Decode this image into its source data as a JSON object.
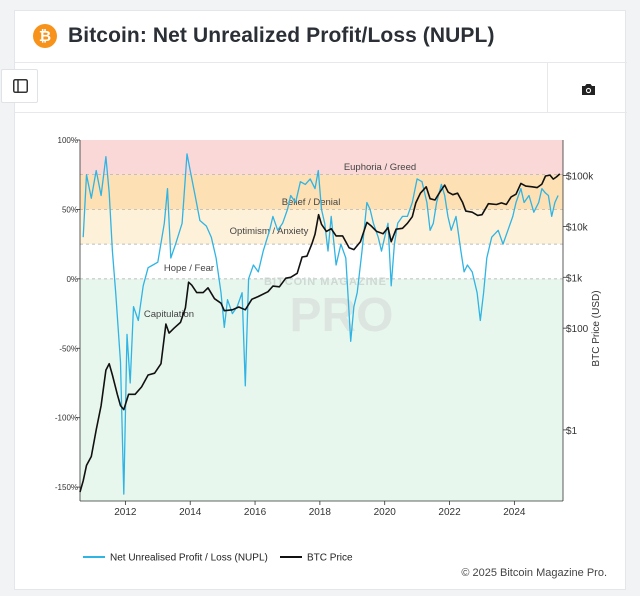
{
  "header": {
    "title": "Bitcoin: Net Unrealized Profit/Loss (NUPL)",
    "logo": "bitcoin-logo",
    "logo_color": "#f7931a"
  },
  "toolbar": {
    "sidebar_toggle_icon": "sidebar-toggle-icon",
    "camera_icon": "camera-icon"
  },
  "footer": {
    "copyright": "© 2025 Bitcoin Magazine Pro."
  },
  "watermark": {
    "line1": "BITCOIN MAGAZINE",
    "line2": "PRO"
  },
  "chart_data": {
    "type": "line",
    "x_range": [
      2010.6,
      2025.5
    ],
    "x_ticks": [
      2012,
      2014,
      2016,
      2018,
      2020,
      2022,
      2024
    ],
    "left_axis": {
      "range": [
        -160,
        100
      ],
      "ticks": [
        -150,
        -100,
        -50,
        0,
        50,
        100
      ],
      "tick_labels": [
        "-150%",
        "-100%",
        "-50%",
        "0%",
        "50%",
        "100%"
      ]
    },
    "right_axis": {
      "label": "BTC Price (USD)",
      "scale": "log",
      "range": [
        0.04,
        500000
      ],
      "ticks": [
        1,
        100,
        1000,
        10000,
        100000
      ],
      "tick_labels": [
        "$1",
        "$100",
        "$1k",
        "$10k",
        "$100k"
      ]
    },
    "zones": [
      {
        "label": "Euphoria / Greed",
        "from": 75,
        "to": 100,
        "color": "#fbd8d8"
      },
      {
        "label": "Belief / Denial",
        "from": 50,
        "to": 75,
        "color": "#fde0b3"
      },
      {
        "label": "Optimism / Anxiety",
        "from": 25,
        "to": 50,
        "color": "#fef1d9"
      },
      {
        "label": "Hope / Fear",
        "from": 0,
        "to": 25,
        "color": "#ffffff"
      },
      {
        "label": "Capitulation",
        "from": -160,
        "to": 0,
        "color": "#e8f7ee"
      }
    ],
    "series": [
      {
        "name": "Net Unrealised Profit / Loss (NUPL)",
        "color": "#2fb4e4",
        "axis": "left",
        "points": [
          [
            2010.7,
            30
          ],
          [
            2010.8,
            75
          ],
          [
            2010.95,
            58
          ],
          [
            2011.1,
            78
          ],
          [
            2011.25,
            60
          ],
          [
            2011.4,
            88
          ],
          [
            2011.5,
            62
          ],
          [
            2011.6,
            20
          ],
          [
            2011.7,
            -10
          ],
          [
            2011.85,
            -60
          ],
          [
            2011.95,
            -155
          ],
          [
            2012.05,
            -40
          ],
          [
            2012.15,
            -75
          ],
          [
            2012.25,
            -20
          ],
          [
            2012.4,
            -30
          ],
          [
            2012.55,
            -5
          ],
          [
            2012.7,
            8
          ],
          [
            2012.85,
            10
          ],
          [
            2013.0,
            12
          ],
          [
            2013.2,
            40
          ],
          [
            2013.3,
            65
          ],
          [
            2013.4,
            15
          ],
          [
            2013.55,
            25
          ],
          [
            2013.75,
            40
          ],
          [
            2013.9,
            90
          ],
          [
            2014.0,
            78
          ],
          [
            2014.15,
            60
          ],
          [
            2014.3,
            42
          ],
          [
            2014.5,
            38
          ],
          [
            2014.65,
            30
          ],
          [
            2014.8,
            15
          ],
          [
            2014.95,
            -10
          ],
          [
            2015.05,
            -35
          ],
          [
            2015.15,
            -15
          ],
          [
            2015.3,
            -25
          ],
          [
            2015.45,
            -20
          ],
          [
            2015.6,
            -10
          ],
          [
            2015.7,
            -77
          ],
          [
            2015.8,
            0
          ],
          [
            2015.95,
            10
          ],
          [
            2016.1,
            5
          ],
          [
            2016.25,
            20
          ],
          [
            2016.45,
            35
          ],
          [
            2016.55,
            45
          ],
          [
            2016.7,
            35
          ],
          [
            2016.85,
            40
          ],
          [
            2017.0,
            50
          ],
          [
            2017.1,
            60
          ],
          [
            2017.25,
            55
          ],
          [
            2017.4,
            70
          ],
          [
            2017.55,
            68
          ],
          [
            2017.7,
            72
          ],
          [
            2017.85,
            65
          ],
          [
            2017.95,
            78
          ],
          [
            2018.05,
            50
          ],
          [
            2018.15,
            40
          ],
          [
            2018.25,
            20
          ],
          [
            2018.35,
            45
          ],
          [
            2018.5,
            10
          ],
          [
            2018.65,
            25
          ],
          [
            2018.8,
            15
          ],
          [
            2018.9,
            -25
          ],
          [
            2018.95,
            -45
          ],
          [
            2019.05,
            -20
          ],
          [
            2019.15,
            -10
          ],
          [
            2019.3,
            20
          ],
          [
            2019.45,
            55
          ],
          [
            2019.55,
            50
          ],
          [
            2019.65,
            40
          ],
          [
            2019.8,
            30
          ],
          [
            2019.9,
            20
          ],
          [
            2020.0,
            30
          ],
          [
            2020.1,
            40
          ],
          [
            2020.2,
            -5
          ],
          [
            2020.3,
            25
          ],
          [
            2020.4,
            40
          ],
          [
            2020.55,
            45
          ],
          [
            2020.7,
            45
          ],
          [
            2020.85,
            55
          ],
          [
            2021.0,
            72
          ],
          [
            2021.15,
            70
          ],
          [
            2021.3,
            55
          ],
          [
            2021.4,
            35
          ],
          [
            2021.5,
            40
          ],
          [
            2021.6,
            55
          ],
          [
            2021.75,
            68
          ],
          [
            2021.85,
            60
          ],
          [
            2021.95,
            45
          ],
          [
            2022.05,
            35
          ],
          [
            2022.2,
            45
          ],
          [
            2022.35,
            20
          ],
          [
            2022.45,
            5
          ],
          [
            2022.55,
            10
          ],
          [
            2022.7,
            5
          ],
          [
            2022.85,
            -10
          ],
          [
            2022.95,
            -30
          ],
          [
            2023.05,
            -10
          ],
          [
            2023.15,
            15
          ],
          [
            2023.3,
            30
          ],
          [
            2023.5,
            35
          ],
          [
            2023.65,
            25
          ],
          [
            2023.8,
            35
          ],
          [
            2023.95,
            45
          ],
          [
            2024.05,
            55
          ],
          [
            2024.2,
            65
          ],
          [
            2024.3,
            55
          ],
          [
            2024.45,
            60
          ],
          [
            2024.6,
            48
          ],
          [
            2024.75,
            55
          ],
          [
            2024.85,
            65
          ],
          [
            2024.95,
            62
          ],
          [
            2025.05,
            60
          ],
          [
            2025.15,
            45
          ],
          [
            2025.25,
            55
          ],
          [
            2025.35,
            60
          ]
        ]
      },
      {
        "name": "BTC Price",
        "color": "#111111",
        "axis": "right",
        "points": [
          [
            2010.6,
            0.06
          ],
          [
            2010.7,
            0.1
          ],
          [
            2010.8,
            0.2
          ],
          [
            2010.95,
            0.3
          ],
          [
            2011.1,
            1
          ],
          [
            2011.25,
            3
          ],
          [
            2011.4,
            15
          ],
          [
            2011.5,
            20
          ],
          [
            2011.6,
            12
          ],
          [
            2011.75,
            5
          ],
          [
            2011.85,
            3
          ],
          [
            2011.95,
            2.5
          ],
          [
            2012.1,
            5
          ],
          [
            2012.3,
            5
          ],
          [
            2012.5,
            7
          ],
          [
            2012.7,
            12
          ],
          [
            2012.9,
            13
          ],
          [
            2013.1,
            20
          ],
          [
            2013.25,
            120
          ],
          [
            2013.35,
            80
          ],
          [
            2013.5,
            100
          ],
          [
            2013.7,
            130
          ],
          [
            2013.85,
            250
          ],
          [
            2013.95,
            800
          ],
          [
            2014.05,
            700
          ],
          [
            2014.2,
            500
          ],
          [
            2014.4,
            500
          ],
          [
            2014.55,
            620
          ],
          [
            2014.75,
            380
          ],
          [
            2014.95,
            310
          ],
          [
            2015.05,
            220
          ],
          [
            2015.3,
            230
          ],
          [
            2015.5,
            260
          ],
          [
            2015.7,
            230
          ],
          [
            2015.9,
            370
          ],
          [
            2016.1,
            420
          ],
          [
            2016.4,
            520
          ],
          [
            2016.55,
            670
          ],
          [
            2016.75,
            650
          ],
          [
            2016.95,
            960
          ],
          [
            2017.1,
            1000
          ],
          [
            2017.3,
            1200
          ],
          [
            2017.45,
            2500
          ],
          [
            2017.6,
            2600
          ],
          [
            2017.75,
            4500
          ],
          [
            2017.85,
            7000
          ],
          [
            2017.96,
            17000
          ],
          [
            2018.05,
            11000
          ],
          [
            2018.2,
            8000
          ],
          [
            2018.35,
            9000
          ],
          [
            2018.5,
            6500
          ],
          [
            2018.7,
            6500
          ],
          [
            2018.9,
            3800
          ],
          [
            2019.05,
            3500
          ],
          [
            2019.25,
            5000
          ],
          [
            2019.45,
            12000
          ],
          [
            2019.6,
            10000
          ],
          [
            2019.75,
            8000
          ],
          [
            2019.95,
            7200
          ],
          [
            2020.1,
            9500
          ],
          [
            2020.2,
            5000
          ],
          [
            2020.35,
            8800
          ],
          [
            2020.55,
            9200
          ],
          [
            2020.7,
            11500
          ],
          [
            2020.85,
            15500
          ],
          [
            2020.96,
            29000
          ],
          [
            2021.1,
            45000
          ],
          [
            2021.28,
            60000
          ],
          [
            2021.4,
            35000
          ],
          [
            2021.55,
            33000
          ],
          [
            2021.7,
            47000
          ],
          [
            2021.85,
            65000
          ],
          [
            2021.96,
            47000
          ],
          [
            2022.1,
            42000
          ],
          [
            2022.25,
            45000
          ],
          [
            2022.4,
            30000
          ],
          [
            2022.5,
            20000
          ],
          [
            2022.7,
            19000
          ],
          [
            2022.87,
            16500
          ],
          [
            2023.0,
            17000
          ],
          [
            2023.2,
            28000
          ],
          [
            2023.45,
            27000
          ],
          [
            2023.6,
            29000
          ],
          [
            2023.75,
            27000
          ],
          [
            2023.9,
            38000
          ],
          [
            2024.05,
            43000
          ],
          [
            2024.2,
            70000
          ],
          [
            2024.35,
            62000
          ],
          [
            2024.55,
            60000
          ],
          [
            2024.7,
            58000
          ],
          [
            2024.85,
            68000
          ],
          [
            2024.96,
            98000
          ],
          [
            2025.1,
            102000
          ],
          [
            2025.2,
            85000
          ],
          [
            2025.3,
            94000
          ],
          [
            2025.4,
            108000
          ]
        ]
      }
    ]
  }
}
